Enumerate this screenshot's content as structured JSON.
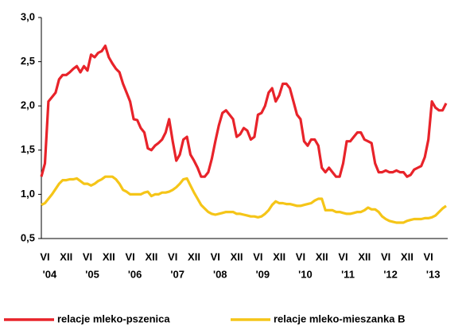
{
  "chart_data": {
    "type": "line",
    "categories": [
      null,
      "VI",
      null,
      null,
      null,
      null,
      null,
      "XII",
      null,
      null,
      null,
      null,
      null,
      "VI",
      null,
      null,
      null,
      null,
      null,
      "XII",
      null,
      null,
      null,
      null,
      null,
      "VI",
      null,
      null,
      null,
      null,
      null,
      "XII",
      null,
      null,
      null,
      null,
      null,
      "VI",
      null,
      null,
      null,
      null,
      null,
      "XII",
      null,
      null,
      null,
      null,
      null,
      "VI",
      null,
      null,
      null,
      null,
      null,
      "XII",
      null,
      null,
      null,
      null,
      null,
      "VI",
      null,
      null,
      null,
      null,
      null,
      "XII",
      null,
      null,
      null,
      null,
      null,
      "VI",
      null,
      null,
      null,
      null,
      null,
      "XII",
      null,
      null,
      null,
      null,
      null,
      "VI",
      null,
      null,
      null,
      null,
      null,
      "XII",
      null,
      null,
      null,
      null,
      null,
      "VI",
      null,
      null,
      null,
      null,
      null,
      "XII",
      null,
      null,
      null,
      null,
      null,
      "VI",
      null,
      null,
      null,
      null,
      null
    ],
    "category_years": [
      null,
      "'04",
      null,
      null,
      null,
      null,
      null,
      null,
      null,
      null,
      null,
      null,
      null,
      "'05",
      null,
      null,
      null,
      null,
      null,
      null,
      null,
      null,
      null,
      null,
      null,
      "'06",
      null,
      null,
      null,
      null,
      null,
      null,
      null,
      null,
      null,
      null,
      null,
      "'07",
      null,
      null,
      null,
      null,
      null,
      null,
      null,
      null,
      null,
      null,
      null,
      "'08",
      null,
      null,
      null,
      null,
      null,
      null,
      null,
      null,
      null,
      null,
      null,
      "'09",
      null,
      null,
      null,
      null,
      null,
      null,
      null,
      null,
      null,
      null,
      null,
      "'10",
      null,
      null,
      null,
      null,
      null,
      null,
      null,
      null,
      null,
      null,
      null,
      "'11",
      null,
      null,
      null,
      null,
      null,
      null,
      null,
      null,
      null,
      null,
      null,
      "'12",
      null,
      null,
      null,
      null,
      null,
      null,
      null,
      null,
      null,
      null,
      null,
      "'13",
      null,
      null,
      null,
      null,
      null
    ],
    "series": [
      {
        "name": "relacje mleko-pszenica",
        "color": "#e8232a",
        "values": [
          1.2,
          1.35,
          2.05,
          2.1,
          2.15,
          2.3,
          2.35,
          2.35,
          2.38,
          2.42,
          2.45,
          2.38,
          2.45,
          2.4,
          2.58,
          2.55,
          2.6,
          2.62,
          2.68,
          2.55,
          2.48,
          2.42,
          2.38,
          2.25,
          2.15,
          2.05,
          1.85,
          1.84,
          1.75,
          1.7,
          1.52,
          1.5,
          1.55,
          1.58,
          1.62,
          1.7,
          1.85,
          1.6,
          1.38,
          1.45,
          1.62,
          1.65,
          1.45,
          1.38,
          1.3,
          1.2,
          1.2,
          1.25,
          1.4,
          1.6,
          1.78,
          1.92,
          1.95,
          1.9,
          1.85,
          1.65,
          1.68,
          1.75,
          1.72,
          1.62,
          1.65,
          1.9,
          1.92,
          2.0,
          2.15,
          2.2,
          2.05,
          2.12,
          2.25,
          2.25,
          2.2,
          2.05,
          1.9,
          1.85,
          1.6,
          1.55,
          1.62,
          1.62,
          1.55,
          1.3,
          1.25,
          1.3,
          1.25,
          1.2,
          1.2,
          1.35,
          1.6,
          1.6,
          1.65,
          1.7,
          1.7,
          1.62,
          1.6,
          1.58,
          1.35,
          1.25,
          1.25,
          1.27,
          1.25,
          1.25,
          1.27,
          1.25,
          1.25,
          1.2,
          1.22,
          1.28,
          1.3,
          1.32,
          1.42,
          1.62,
          2.05,
          1.98,
          1.95,
          1.95,
          2.03
        ]
      },
      {
        "name": "relacje mleko-mieszanka B",
        "color": "#f5c518",
        "values": [
          0.88,
          0.9,
          0.95,
          1.0,
          1.06,
          1.12,
          1.16,
          1.16,
          1.17,
          1.17,
          1.18,
          1.15,
          1.12,
          1.12,
          1.1,
          1.12,
          1.15,
          1.17,
          1.2,
          1.2,
          1.2,
          1.17,
          1.12,
          1.05,
          1.03,
          1.0,
          1.0,
          1.0,
          1.0,
          1.02,
          1.03,
          0.98,
          1.0,
          1.0,
          1.02,
          1.02,
          1.03,
          1.05,
          1.08,
          1.12,
          1.17,
          1.18,
          1.1,
          1.02,
          0.95,
          0.88,
          0.84,
          0.8,
          0.78,
          0.77,
          0.78,
          0.79,
          0.8,
          0.8,
          0.8,
          0.78,
          0.78,
          0.77,
          0.76,
          0.75,
          0.75,
          0.74,
          0.75,
          0.78,
          0.82,
          0.88,
          0.92,
          0.9,
          0.9,
          0.89,
          0.89,
          0.88,
          0.87,
          0.87,
          0.88,
          0.89,
          0.9,
          0.93,
          0.95,
          0.95,
          0.82,
          0.82,
          0.82,
          0.8,
          0.8,
          0.79,
          0.78,
          0.78,
          0.79,
          0.8,
          0.8,
          0.82,
          0.85,
          0.83,
          0.83,
          0.8,
          0.75,
          0.72,
          0.7,
          0.69,
          0.68,
          0.68,
          0.68,
          0.7,
          0.71,
          0.72,
          0.72,
          0.72,
          0.73,
          0.73,
          0.74,
          0.76,
          0.8,
          0.84,
          0.87
        ]
      }
    ],
    "ylim": [
      0.5,
      3.0
    ],
    "yticks": [
      {
        "value": 0.5,
        "label": "0,5"
      },
      {
        "value": 1.0,
        "label": "1,0"
      },
      {
        "value": 1.5,
        "label": "1,5"
      },
      {
        "value": 2.0,
        "label": "2,0"
      },
      {
        "value": 2.5,
        "label": "2,5"
      },
      {
        "value": 3.0,
        "label": "3,0"
      }
    ],
    "grid": false,
    "legend": "bottom"
  }
}
